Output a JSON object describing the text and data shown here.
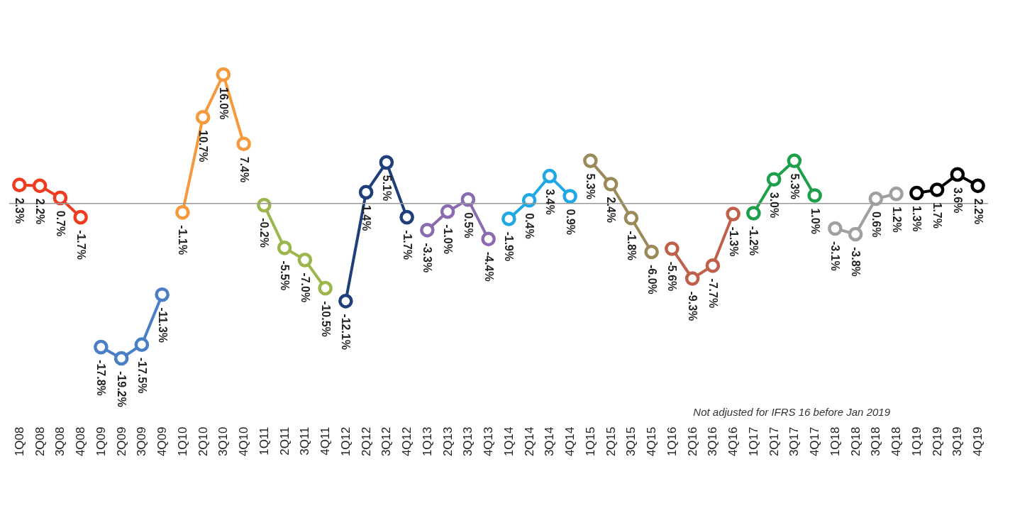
{
  "chart_data": {
    "type": "line",
    "categories": [
      "1Q08",
      "2Q08",
      "3Q08",
      "4Q08",
      "1Q09",
      "2Q09",
      "3Q09",
      "4Q09",
      "1Q10",
      "2Q10",
      "3Q10",
      "4Q10",
      "1Q11",
      "2Q11",
      "3Q11",
      "4Q11",
      "1Q12",
      "2Q12",
      "3Q12",
      "4Q12",
      "1Q13",
      "2Q13",
      "3Q13",
      "4Q13",
      "1Q14",
      "2Q14",
      "3Q14",
      "4Q14",
      "1Q15",
      "2Q15",
      "3Q15",
      "4Q15",
      "1Q16",
      "2Q16",
      "3Q16",
      "4Q16",
      "1Q17",
      "2Q17",
      "3Q17",
      "4Q17",
      "1Q18",
      "2Q18",
      "3Q18",
      "4Q18",
      "1Q19",
      "2Q19",
      "3Q19",
      "4Q19"
    ],
    "series": [
      {
        "color": "#f03c1e",
        "values": [
          2.3,
          2.2,
          0.7,
          -1.7,
          null,
          null,
          null,
          null,
          null,
          null,
          null,
          null,
          null,
          null,
          null,
          null,
          null,
          null,
          null,
          null,
          null,
          null,
          null,
          null,
          null,
          null,
          null,
          null,
          null,
          null,
          null,
          null,
          null,
          null,
          null,
          null,
          null,
          null,
          null,
          null,
          null,
          null,
          null,
          null,
          null,
          null,
          null,
          null
        ],
        "value_labels": [
          "2.3%",
          "2.2%",
          "0.7%",
          "-1.7%",
          null,
          null,
          null,
          null,
          null,
          null,
          null,
          null,
          null,
          null,
          null,
          null,
          null,
          null,
          null,
          null,
          null,
          null,
          null,
          null,
          null,
          null,
          null,
          null,
          null,
          null,
          null,
          null,
          null,
          null,
          null,
          null,
          null,
          null,
          null,
          null,
          null,
          null,
          null,
          null,
          null,
          null,
          null,
          null
        ]
      },
      {
        "color": "#4a7fc8",
        "values": [
          null,
          null,
          null,
          null,
          -17.8,
          -19.2,
          -17.5,
          -11.3,
          null,
          null,
          null,
          null,
          null,
          null,
          null,
          null,
          null,
          null,
          null,
          null,
          null,
          null,
          null,
          null,
          null,
          null,
          null,
          null,
          null,
          null,
          null,
          null,
          null,
          null,
          null,
          null,
          null,
          null,
          null,
          null,
          null,
          null,
          null,
          null,
          null,
          null,
          null,
          null
        ],
        "value_labels": [
          null,
          null,
          null,
          null,
          "-17.8%",
          "-19.2%",
          "-17.5%",
          "-11.3%",
          null,
          null,
          null,
          null,
          null,
          null,
          null,
          null,
          null,
          null,
          null,
          null,
          null,
          null,
          null,
          null,
          null,
          null,
          null,
          null,
          null,
          null,
          null,
          null,
          null,
          null,
          null,
          null,
          null,
          null,
          null,
          null,
          null,
          null,
          null,
          null,
          null,
          null,
          null,
          null
        ]
      },
      {
        "color": "#f5993c",
        "values": [
          null,
          null,
          null,
          null,
          null,
          null,
          null,
          null,
          -1.1,
          10.7,
          16.0,
          7.4,
          null,
          null,
          null,
          null,
          null,
          null,
          null,
          null,
          null,
          null,
          null,
          null,
          null,
          null,
          null,
          null,
          null,
          null,
          null,
          null,
          null,
          null,
          null,
          null,
          null,
          null,
          null,
          null,
          null,
          null,
          null,
          null,
          null,
          null,
          null,
          null
        ],
        "value_labels": [
          null,
          null,
          null,
          null,
          null,
          null,
          null,
          null,
          "-1.1%",
          "10.7%",
          "16.0%",
          "7.4%",
          null,
          null,
          null,
          null,
          null,
          null,
          null,
          null,
          null,
          null,
          null,
          null,
          null,
          null,
          null,
          null,
          null,
          null,
          null,
          null,
          null,
          null,
          null,
          null,
          null,
          null,
          null,
          null,
          null,
          null,
          null,
          null,
          null,
          null,
          null,
          null
        ]
      },
      {
        "color": "#9bb64a",
        "values": [
          null,
          null,
          null,
          null,
          null,
          null,
          null,
          null,
          null,
          null,
          null,
          null,
          -0.2,
          -5.5,
          -7.0,
          -10.5,
          null,
          null,
          null,
          null,
          null,
          null,
          null,
          null,
          null,
          null,
          null,
          null,
          null,
          null,
          null,
          null,
          null,
          null,
          null,
          null,
          null,
          null,
          null,
          null,
          null,
          null,
          null,
          null,
          null,
          null,
          null,
          null
        ],
        "value_labels": [
          null,
          null,
          null,
          null,
          null,
          null,
          null,
          null,
          null,
          null,
          null,
          null,
          "-0.2%",
          "-5.5%",
          "-7.0%",
          "-10.5%",
          null,
          null,
          null,
          null,
          null,
          null,
          null,
          null,
          null,
          null,
          null,
          null,
          null,
          null,
          null,
          null,
          null,
          null,
          null,
          null,
          null,
          null,
          null,
          null,
          null,
          null,
          null,
          null,
          null,
          null,
          null,
          null
        ]
      },
      {
        "color": "#1f3f7a",
        "values": [
          null,
          null,
          null,
          null,
          null,
          null,
          null,
          null,
          null,
          null,
          null,
          null,
          null,
          null,
          null,
          null,
          -12.1,
          1.4,
          5.1,
          -1.7,
          null,
          null,
          null,
          null,
          null,
          null,
          null,
          null,
          null,
          null,
          null,
          null,
          null,
          null,
          null,
          null,
          null,
          null,
          null,
          null,
          null,
          null,
          null,
          null,
          null,
          null,
          null,
          null
        ],
        "value_labels": [
          null,
          null,
          null,
          null,
          null,
          null,
          null,
          null,
          null,
          null,
          null,
          null,
          null,
          null,
          null,
          null,
          "-12.1%",
          "1.4%",
          "5.1%",
          "-1.7%",
          null,
          null,
          null,
          null,
          null,
          null,
          null,
          null,
          null,
          null,
          null,
          null,
          null,
          null,
          null,
          null,
          null,
          null,
          null,
          null,
          null,
          null,
          null,
          null,
          null,
          null,
          null,
          null
        ]
      },
      {
        "color": "#8b6bb0",
        "values": [
          null,
          null,
          null,
          null,
          null,
          null,
          null,
          null,
          null,
          null,
          null,
          null,
          null,
          null,
          null,
          null,
          null,
          null,
          null,
          null,
          -3.3,
          -1.0,
          0.5,
          -4.4,
          null,
          null,
          null,
          null,
          null,
          null,
          null,
          null,
          null,
          null,
          null,
          null,
          null,
          null,
          null,
          null,
          null,
          null,
          null,
          null,
          null,
          null,
          null,
          null
        ],
        "value_labels": [
          null,
          null,
          null,
          null,
          null,
          null,
          null,
          null,
          null,
          null,
          null,
          null,
          null,
          null,
          null,
          null,
          null,
          null,
          null,
          null,
          "-3.3%",
          "-1.0%",
          "0.5%",
          "-4.4%",
          null,
          null,
          null,
          null,
          null,
          null,
          null,
          null,
          null,
          null,
          null,
          null,
          null,
          null,
          null,
          null,
          null,
          null,
          null,
          null,
          null,
          null,
          null,
          null
        ]
      },
      {
        "color": "#1ea8e6",
        "values": [
          null,
          null,
          null,
          null,
          null,
          null,
          null,
          null,
          null,
          null,
          null,
          null,
          null,
          null,
          null,
          null,
          null,
          null,
          null,
          null,
          null,
          null,
          null,
          null,
          -1.9,
          0.4,
          3.4,
          0.9,
          null,
          null,
          null,
          null,
          null,
          null,
          null,
          null,
          null,
          null,
          null,
          null,
          null,
          null,
          null,
          null,
          null,
          null,
          null,
          null
        ],
        "value_labels": [
          null,
          null,
          null,
          null,
          null,
          null,
          null,
          null,
          null,
          null,
          null,
          null,
          null,
          null,
          null,
          null,
          null,
          null,
          null,
          null,
          null,
          null,
          null,
          null,
          "-1.9%",
          "0.4%",
          "3.4%",
          "0.9%",
          null,
          null,
          null,
          null,
          null,
          null,
          null,
          null,
          null,
          null,
          null,
          null,
          null,
          null,
          null,
          null,
          null,
          null,
          null,
          null
        ]
      },
      {
        "color": "#9a8a5a",
        "values": [
          null,
          null,
          null,
          null,
          null,
          null,
          null,
          null,
          null,
          null,
          null,
          null,
          null,
          null,
          null,
          null,
          null,
          null,
          null,
          null,
          null,
          null,
          null,
          null,
          null,
          null,
          null,
          null,
          5.3,
          2.4,
          -1.8,
          -6.0,
          null,
          null,
          null,
          null,
          null,
          null,
          null,
          null,
          null,
          null,
          null,
          null,
          null,
          null,
          null,
          null
        ],
        "value_labels": [
          null,
          null,
          null,
          null,
          null,
          null,
          null,
          null,
          null,
          null,
          null,
          null,
          null,
          null,
          null,
          null,
          null,
          null,
          null,
          null,
          null,
          null,
          null,
          null,
          null,
          null,
          null,
          null,
          "5.3%",
          "2.4%",
          "-1.8%",
          "-6.0%",
          null,
          null,
          null,
          null,
          null,
          null,
          null,
          null,
          null,
          null,
          null,
          null,
          null,
          null,
          null,
          null
        ]
      },
      {
        "color": "#c0604a",
        "values": [
          null,
          null,
          null,
          null,
          null,
          null,
          null,
          null,
          null,
          null,
          null,
          null,
          null,
          null,
          null,
          null,
          null,
          null,
          null,
          null,
          null,
          null,
          null,
          null,
          null,
          null,
          null,
          null,
          null,
          null,
          null,
          null,
          -5.6,
          -9.3,
          -7.7,
          -1.3,
          null,
          null,
          null,
          null,
          null,
          null,
          null,
          null,
          null,
          null,
          null,
          null
        ],
        "value_labels": [
          null,
          null,
          null,
          null,
          null,
          null,
          null,
          null,
          null,
          null,
          null,
          null,
          null,
          null,
          null,
          null,
          null,
          null,
          null,
          null,
          null,
          null,
          null,
          null,
          null,
          null,
          null,
          null,
          null,
          null,
          null,
          null,
          "-5.6%",
          "-9.3%",
          "-7.7%",
          "-1.3%",
          null,
          null,
          null,
          null,
          null,
          null,
          null,
          null,
          null,
          null,
          null,
          null
        ]
      },
      {
        "color": "#1ea04a",
        "values": [
          null,
          null,
          null,
          null,
          null,
          null,
          null,
          null,
          null,
          null,
          null,
          null,
          null,
          null,
          null,
          null,
          null,
          null,
          null,
          null,
          null,
          null,
          null,
          null,
          null,
          null,
          null,
          null,
          null,
          null,
          null,
          null,
          null,
          null,
          null,
          null,
          -1.2,
          3.0,
          5.3,
          1.0,
          null,
          null,
          null,
          null,
          null,
          null,
          null,
          null
        ],
        "value_labels": [
          null,
          null,
          null,
          null,
          null,
          null,
          null,
          null,
          null,
          null,
          null,
          null,
          null,
          null,
          null,
          null,
          null,
          null,
          null,
          null,
          null,
          null,
          null,
          null,
          null,
          null,
          null,
          null,
          null,
          null,
          null,
          null,
          null,
          null,
          null,
          null,
          "-1.2%",
          "3.0%",
          "5.3%",
          "1.0%",
          null,
          null,
          null,
          null,
          null,
          null,
          null,
          null
        ]
      },
      {
        "color": "#a0a0a0",
        "values": [
          null,
          null,
          null,
          null,
          null,
          null,
          null,
          null,
          null,
          null,
          null,
          null,
          null,
          null,
          null,
          null,
          null,
          null,
          null,
          null,
          null,
          null,
          null,
          null,
          null,
          null,
          null,
          null,
          null,
          null,
          null,
          null,
          null,
          null,
          null,
          null,
          null,
          null,
          null,
          null,
          -3.1,
          -3.8,
          0.6,
          1.2,
          null,
          null,
          null,
          null
        ],
        "value_labels": [
          null,
          null,
          null,
          null,
          null,
          null,
          null,
          null,
          null,
          null,
          null,
          null,
          null,
          null,
          null,
          null,
          null,
          null,
          null,
          null,
          null,
          null,
          null,
          null,
          null,
          null,
          null,
          null,
          null,
          null,
          null,
          null,
          null,
          null,
          null,
          null,
          null,
          null,
          null,
          null,
          "-3.1%",
          "-3.8%",
          "0.6%",
          "1.2%",
          null,
          null,
          null,
          null
        ]
      },
      {
        "color": "#000000",
        "values": [
          null,
          null,
          null,
          null,
          null,
          null,
          null,
          null,
          null,
          null,
          null,
          null,
          null,
          null,
          null,
          null,
          null,
          null,
          null,
          null,
          null,
          null,
          null,
          null,
          null,
          null,
          null,
          null,
          null,
          null,
          null,
          null,
          null,
          null,
          null,
          null,
          null,
          null,
          null,
          null,
          null,
          null,
          null,
          null,
          1.3,
          1.7,
          3.6,
          2.2
        ],
        "value_labels": [
          null,
          null,
          null,
          null,
          null,
          null,
          null,
          null,
          null,
          null,
          null,
          null,
          null,
          null,
          null,
          null,
          null,
          null,
          null,
          null,
          null,
          null,
          null,
          null,
          null,
          null,
          null,
          null,
          null,
          null,
          null,
          null,
          null,
          null,
          null,
          null,
          null,
          null,
          null,
          null,
          null,
          null,
          null,
          null,
          "1.3%",
          "1.7%",
          "3.6%",
          "2.2%"
        ]
      }
    ],
    "ref_lines": [
      {
        "axis": "y",
        "value": 0
      }
    ],
    "annotations": [
      "Not adjusted for IFRS 16 before Jan 2019"
    ],
    "marker": "circle",
    "legend": false
  }
}
